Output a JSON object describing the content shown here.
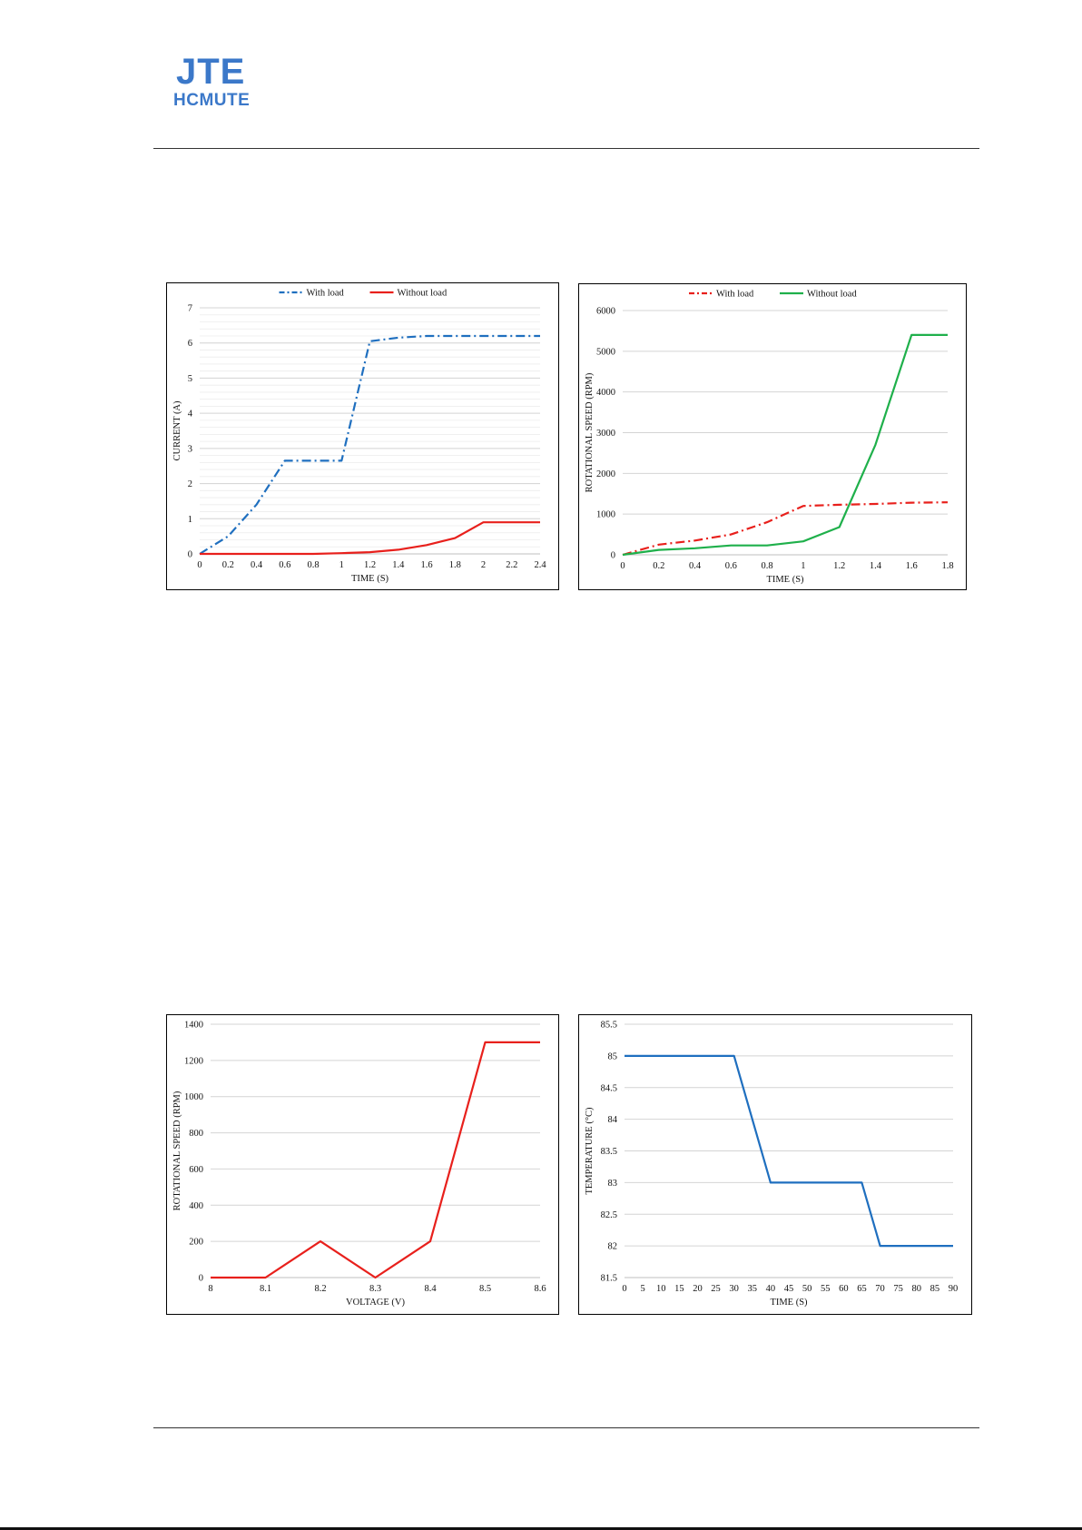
{
  "header": {
    "logo_line1": "JTE",
    "logo_line2": "HCMUTE"
  },
  "chart_data": [
    {
      "id": "current",
      "type": "line",
      "xlabel": "TIME (S)",
      "ylabel": "CURRENT (A)",
      "xlim": [
        0,
        2.4
      ],
      "ylim": [
        0,
        7
      ],
      "xticks": [
        "0",
        "0.2",
        "0.4",
        "0.6",
        "0.8",
        "1",
        "1.2",
        "1.4",
        "1.6",
        "1.8",
        "2",
        "2.2",
        "2.4"
      ],
      "yticks": [
        "0",
        "1",
        "2",
        "3",
        "4",
        "5",
        "6",
        "7"
      ],
      "grid": true,
      "minor_grid": true,
      "legend": "top-center",
      "series": [
        {
          "name": "With load",
          "color": "#1f6fbf",
          "dash": "dashdot",
          "x": [
            0,
            0.2,
            0.4,
            0.6,
            0.8,
            1.0,
            1.2,
            1.4,
            1.6,
            1.8,
            2.0,
            2.2,
            2.4
          ],
          "y": [
            0,
            0.5,
            1.4,
            2.65,
            2.65,
            2.65,
            6.05,
            6.15,
            6.2,
            6.2,
            6.2,
            6.2,
            6.2
          ]
        },
        {
          "name": "Without load",
          "color": "#e8201c",
          "dash": "solid",
          "x": [
            0,
            0.2,
            0.4,
            0.6,
            0.8,
            1.0,
            1.2,
            1.4,
            1.6,
            1.8,
            2.0,
            2.2,
            2.4
          ],
          "y": [
            0,
            0,
            0,
            0,
            0,
            0.02,
            0.05,
            0.12,
            0.25,
            0.45,
            0.9,
            0.9,
            0.9
          ]
        }
      ]
    },
    {
      "id": "speed-time",
      "type": "line",
      "xlabel": "TIME (S)",
      "ylabel": "ROTATIONAL SPEED (RPM)",
      "xlim": [
        0,
        1.8
      ],
      "ylim": [
        0,
        6000
      ],
      "xticks": [
        "0",
        "0.2",
        "0.4",
        "0.6",
        "0.8",
        "1",
        "1.2",
        "1.4",
        "1.6",
        "1.8"
      ],
      "yticks": [
        "0",
        "1000",
        "2000",
        "3000",
        "4000",
        "5000",
        "6000"
      ],
      "grid": true,
      "minor_grid": false,
      "legend": "top-center",
      "series": [
        {
          "name": "With load",
          "color": "#e8201c",
          "dash": "dashdot",
          "x": [
            0,
            0.2,
            0.4,
            0.6,
            0.8,
            1.0,
            1.2,
            1.4,
            1.6,
            1.8
          ],
          "y": [
            0,
            250,
            350,
            500,
            800,
            1200,
            1230,
            1250,
            1280,
            1290
          ]
        },
        {
          "name": "Without load",
          "color": "#1fb04b",
          "dash": "solid",
          "x": [
            0,
            0.2,
            0.4,
            0.6,
            0.8,
            1.0,
            1.2,
            1.4,
            1.6,
            1.8
          ],
          "y": [
            0,
            120,
            160,
            230,
            230,
            330,
            680,
            2700,
            5400,
            5400
          ]
        }
      ]
    },
    {
      "id": "speed-voltage",
      "type": "line",
      "xlabel": "VOLTAGE (V)",
      "ylabel": "ROTATIONAL SPEED (RPM)",
      "xlim": [
        8,
        8.6
      ],
      "ylim": [
        0,
        1400
      ],
      "xticks": [
        "8",
        "8.1",
        "8.2",
        "8.3",
        "8.4",
        "8.5",
        "8.6"
      ],
      "yticks": [
        "0",
        "200",
        "400",
        "600",
        "800",
        "1000",
        "1200",
        "1400"
      ],
      "grid": true,
      "minor_grid": false,
      "legend": "none",
      "series": [
        {
          "color": "#e8201c",
          "dash": "solid",
          "x": [
            8.0,
            8.1,
            8.2,
            8.3,
            8.4,
            8.5,
            8.6
          ],
          "y": [
            0,
            0,
            200,
            0,
            200,
            1300,
            1300
          ]
        }
      ]
    },
    {
      "id": "temperature",
      "type": "line",
      "xlabel": "TIME (S)",
      "ylabel": "TEMPERATURE (°C)",
      "xlim": [
        0,
        90
      ],
      "ylim": [
        81.5,
        85.5
      ],
      "xticks": [
        "0",
        "5",
        "10",
        "15",
        "20",
        "25",
        "30",
        "35",
        "40",
        "45",
        "50",
        "55",
        "60",
        "65",
        "70",
        "75",
        "80",
        "85",
        "90"
      ],
      "yticks": [
        "81.5",
        "82",
        "82.5",
        "83",
        "83.5",
        "84",
        "84.5",
        "85",
        "85.5"
      ],
      "grid": true,
      "minor_grid": false,
      "legend": "none",
      "series": [
        {
          "color": "#1f6fbf",
          "dash": "solid",
          "x": [
            0,
            30,
            40,
            65,
            70,
            90
          ],
          "y": [
            85,
            85,
            83,
            83,
            82,
            82
          ]
        }
      ]
    }
  ]
}
